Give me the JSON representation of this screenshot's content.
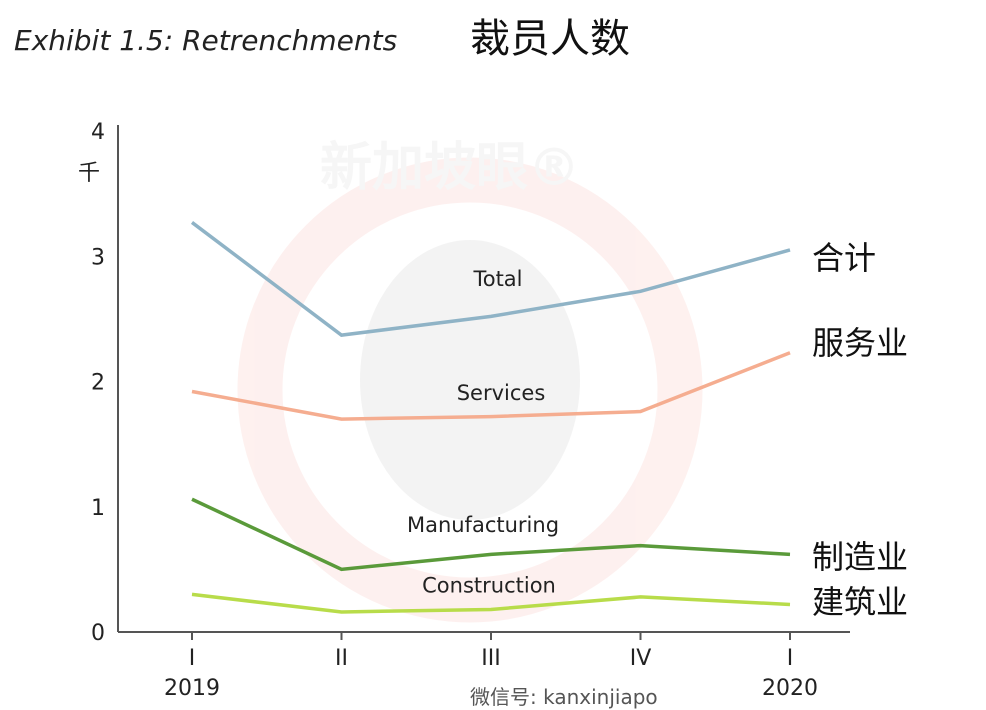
{
  "chart_data": {
    "type": "line",
    "title": "Exhibit 1.5: Retrenchments",
    "title_zh": "裁员人数",
    "ylabel": "千",
    "ylim": [
      0,
      4
    ],
    "yticks": [
      "0",
      "1",
      "2",
      "3",
      "4"
    ],
    "categories": [
      "I",
      "II",
      "III",
      "IV",
      "I"
    ],
    "year_labels": [
      {
        "index": 0,
        "text": "2019"
      },
      {
        "index": 4,
        "text": "2020"
      }
    ],
    "grid": false,
    "series": [
      {
        "name": "Total",
        "name_zh": "合计",
        "color": "#8fb3c6",
        "values": [
          3.27,
          2.37,
          2.52,
          2.72,
          3.05
        ]
      },
      {
        "name": "Services",
        "name_zh": "服务业",
        "color": "#f5ad90",
        "values": [
          1.92,
          1.7,
          1.72,
          1.76,
          2.23
        ]
      },
      {
        "name": "Manufacturing",
        "name_zh": "制造业",
        "color": "#5a9a3a",
        "values": [
          1.06,
          0.5,
          0.62,
          0.69,
          0.62
        ]
      },
      {
        "name": "Construction",
        "name_zh": "建筑业",
        "color": "#b8dc4a",
        "values": [
          0.3,
          0.16,
          0.18,
          0.28,
          0.22
        ]
      }
    ]
  },
  "watermark": {
    "text": "新加坡眼®",
    "wechat": "微信号: kanxinjiapo"
  }
}
